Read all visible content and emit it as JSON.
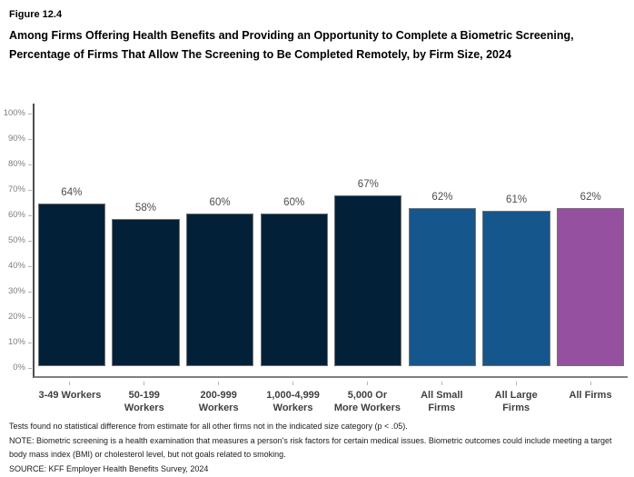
{
  "header": {
    "figure_label": "Figure 12.4",
    "title": "Among Firms Offering Health Benefits and Providing an Opportunity to Complete a Biometric Screening, Percentage of Firms That Allow The Screening to Be Completed Remotely, by Firm Size, 2024"
  },
  "chart_data": {
    "type": "bar",
    "title": "Among Firms Offering Health Benefits and Providing an Opportunity to Complete a Biometric Screening, Percentage of Firms That Allow The Screening to Be Completed Remotely, by Firm Size, 2024",
    "categories": [
      "3-49 Workers",
      "50-199 Workers",
      "200-999 Workers",
      "1,000-4,999 Workers",
      "5,000 Or More Workers",
      "All Small Firms",
      "All Large Firms",
      "All Firms"
    ],
    "category_label_lines": [
      [
        "3-49 Workers"
      ],
      [
        "50-199",
        "Workers"
      ],
      [
        "200-999",
        "Workers"
      ],
      [
        "1,000-4,999",
        "Workers"
      ],
      [
        "5,000 Or",
        "More Workers"
      ],
      [
        "All Small",
        "Firms"
      ],
      [
        "All Large",
        "Firms"
      ],
      [
        "All Firms"
      ]
    ],
    "values": [
      64,
      58,
      60,
      60,
      67,
      62,
      61,
      62
    ],
    "value_labels": [
      "64%",
      "58%",
      "60%",
      "60%",
      "67%",
      "62%",
      "61%",
      "62%"
    ],
    "bar_colors": [
      "#022139",
      "#022139",
      "#022139",
      "#022139",
      "#022139",
      "#15568D",
      "#15568D",
      "#95519F"
    ],
    "xlabel": "",
    "ylabel": "",
    "ylim": [
      0,
      100
    ],
    "y_tick_labels": [
      "0%",
      "10%",
      "20%",
      "30%",
      "40%",
      "50%",
      "60%",
      "70%",
      "80%",
      "90%",
      "100%"
    ],
    "grid": false,
    "legend": false,
    "colors": {
      "firm_size_bars": "#022139",
      "all_small_large_bars": "#15568D",
      "all_firms_bar": "#95519F",
      "bar_border": "#737373",
      "axis_line": "#7f7f7f",
      "tick_label": "#7f7f7f",
      "category_label": "#404040"
    }
  },
  "footnotes": [
    "Tests found no statistical difference from estimate for all other firms not in the indicated size category (p < .05).",
    "NOTE: Biometric screening is a health examination that measures a person's risk factors for certain medical issues. Biometric outcomes could include meeting a target body mass index (BMI) or cholesterol level, but not goals related to smoking.",
    "SOURCE: KFF Employer Health Benefits Survey, 2024"
  ]
}
